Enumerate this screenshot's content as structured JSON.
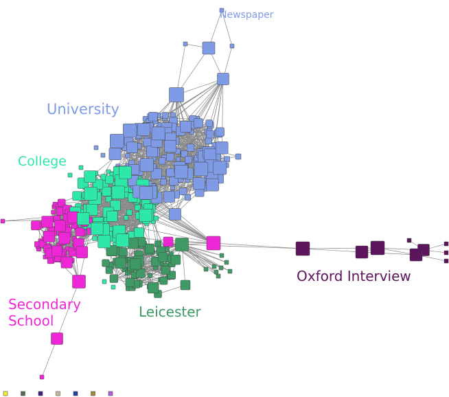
{
  "clusters": [
    {
      "id": "newspaper",
      "label": "Newspaper",
      "color": "#7f9be6"
    },
    {
      "id": "university",
      "label": "University",
      "color": "#7f9be6"
    },
    {
      "id": "college",
      "label": "College",
      "color": "#2ee8a9"
    },
    {
      "id": "secondary",
      "label": "Secondary School",
      "color": "#ee27d6"
    },
    {
      "id": "leicester",
      "label": "Leicester",
      "color": "#3e9965"
    },
    {
      "id": "oxford",
      "label": "Oxford Interview",
      "color": "#5c145c"
    }
  ],
  "legend_colors": [
    "#f4ef3a",
    "#556b55",
    "#4b1a86",
    "#cbb79a",
    "#1d3fa8",
    "#a2893a",
    "#b35fd4"
  ]
}
